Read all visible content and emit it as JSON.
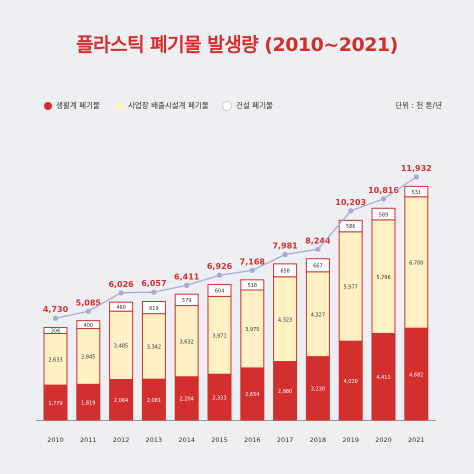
{
  "title": "플라스틱 폐기물 발생량 (2010~2021)",
  "legend": {
    "items": [
      {
        "label": "생활계 폐기물",
        "color": "#d32f2f"
      },
      {
        "label": "사업장 배출시설계 폐기물",
        "color": "#fff1c4"
      },
      {
        "label": "건설 폐기물",
        "color": "#ffffff"
      }
    ],
    "unit": "단위 : 천 톤/년"
  },
  "colors": {
    "household": "#d32f2f",
    "business": "#fff1c4",
    "construction": "#ffffff",
    "border": "#d32f2f",
    "line": "#a7abd4",
    "total_text": "#d32f2f"
  },
  "chart_data": {
    "type": "bar",
    "stacked": true,
    "categories": [
      "2010",
      "2011",
      "2012",
      "2013",
      "2014",
      "2015",
      "2016",
      "2017",
      "2018",
      "2019",
      "2020",
      "2021"
    ],
    "series": [
      {
        "name": "생활계 폐기물",
        "values": [
          1779,
          1819,
          2064,
          2081,
          2204,
          2333,
          2654,
          2980,
          3230,
          4020,
          4411,
          4682
        ],
        "labels": [
          "1,779",
          "1,819",
          "2,064",
          "2,081",
          "2,204",
          "2,333",
          "2,654",
          "2,980",
          "3,230",
          "4,020",
          "4,411",
          "4,682"
        ]
      },
      {
        "name": "사업장 배출시설계 폐기물",
        "values": [
          2633,
          2845,
          3485,
          3342,
          3632,
          3971,
          3975,
          4323,
          4327,
          5577,
          5796,
          6700
        ],
        "labels": [
          "2,633",
          "2,845",
          "3,485",
          "3,342",
          "3,632",
          "3,971",
          "3,975",
          "4,323",
          "4,327",
          "5,577",
          "5,796",
          "6,700"
        ]
      },
      {
        "name": "건설 폐기물",
        "values": [
          306,
          400,
          460,
          619,
          579,
          604,
          518,
          658,
          667,
          586,
          589,
          531
        ],
        "labels": [
          "306",
          "400",
          "460",
          "619",
          "579",
          "604",
          "518",
          "658",
          "667",
          "586",
          "589",
          "531"
        ]
      }
    ],
    "totals": [
      4730,
      5085,
      6026,
      6057,
      6411,
      6926,
      7168,
      7981,
      8244,
      10203,
      10816,
      11932
    ],
    "total_labels": [
      "4,730",
      "5,085",
      "6,026",
      "6,057",
      "6,411",
      "6,926",
      "7,168",
      "7,981",
      "8,244",
      "10,203",
      "10,816",
      "11,932"
    ],
    "ylim": [
      0,
      11932
    ],
    "legend_position": "top",
    "grid": false
  }
}
